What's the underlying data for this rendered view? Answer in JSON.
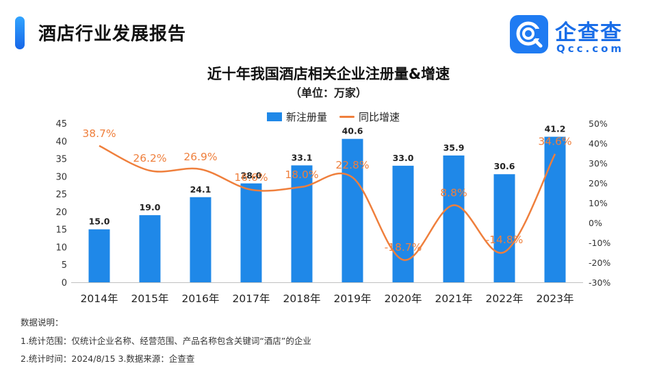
{
  "header": {
    "report_title": "酒店行业发展报告",
    "logo_name": "企查查",
    "logo_sub": "Qcc.com"
  },
  "chart_data": {
    "type": "bar+line",
    "title": "近十年我国酒店相关企业注册量&增速",
    "subtitle": "（单位：万家）",
    "categories": [
      "2014年",
      "2015年",
      "2016年",
      "2017年",
      "2018年",
      "2019年",
      "2020年",
      "2021年",
      "2022年",
      "2023年"
    ],
    "series": [
      {
        "name": "新注册量",
        "type": "bar",
        "axis": "left",
        "values": [
          15.0,
          19.0,
          24.1,
          28.0,
          33.1,
          40.6,
          33.0,
          35.9,
          30.6,
          41.2
        ],
        "labels": [
          "15.0",
          "19.0",
          "24.1",
          "28.0",
          "33.1",
          "40.6",
          "33.0",
          "35.9",
          "30.6",
          "41.2"
        ],
        "color": "#1f88e8"
      },
      {
        "name": "同比增速",
        "type": "line",
        "axis": "right",
        "values": [
          38.7,
          26.2,
          26.9,
          16.6,
          18.0,
          22.8,
          -18.7,
          8.8,
          -14.8,
          34.6
        ],
        "labels": [
          "38.7%",
          "26.2%",
          "26.9%",
          "16.6%",
          "18.0%",
          "22.8%",
          "-18.7%",
          "8.8%",
          "-14.8%",
          "34.6%"
        ],
        "color": "#ef7f3c"
      }
    ],
    "y_left": {
      "min": 0,
      "max": 45,
      "ticks": [
        "0",
        "5",
        "10",
        "15",
        "20",
        "25",
        "30",
        "35",
        "40",
        "45"
      ]
    },
    "y_right": {
      "min": -30,
      "max": 50,
      "ticks": [
        "-30%",
        "-20%",
        "-10%",
        "0%",
        "10%",
        "20%",
        "30%",
        "40%",
        "50%"
      ]
    },
    "legend_position": "top-center",
    "grid": false
  },
  "notes": {
    "heading": "数据说明：",
    "line1": "1.统计范围：仅统计企业名称、经营范围、产品名称包含关键词“酒店”的企业",
    "line2": "2.统计时间：2024/8/15      3.数据来源：企查查"
  }
}
